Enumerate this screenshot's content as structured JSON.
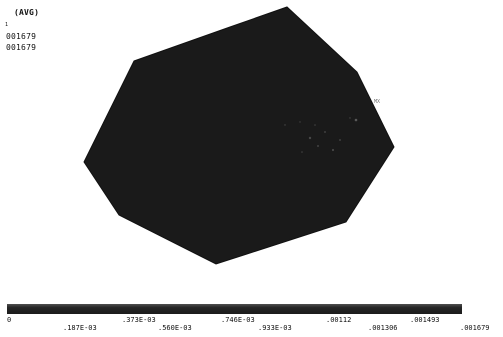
{
  "legend": {
    "stat": "(AVG)",
    "tick": "1",
    "min_value": "001679",
    "max_value": "001679"
  },
  "plot": {
    "fill_color": "#1a1a1a",
    "marker_label": "MX"
  },
  "colorbar": {
    "fill_color": "#1f1f1f",
    "labels_row1": [
      "0",
      ".373E-03",
      ".746E-03",
      ".00112",
      ".001493"
    ],
    "labels_row2": [
      ".187E-03",
      ".560E-03",
      ".933E-03",
      ".001306",
      ".001679"
    ]
  }
}
